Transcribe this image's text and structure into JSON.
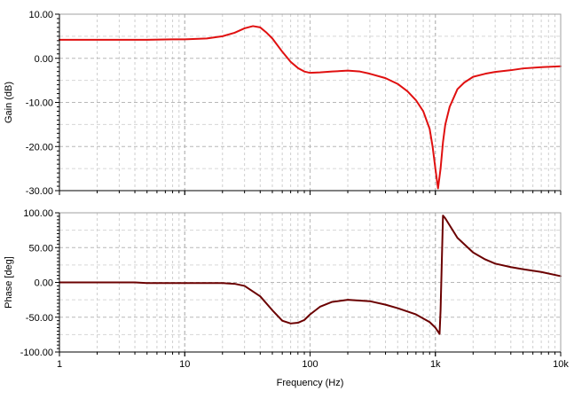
{
  "chart_data": [
    {
      "type": "line",
      "ylabel": "Gain (dB)",
      "xscale": "log",
      "xlim": [
        1,
        10000
      ],
      "ylim": [
        -30,
        10
      ],
      "yticks": [
        10,
        0,
        -10,
        -20,
        -30
      ],
      "ytick_labels": [
        "10.00",
        "0.00",
        "-10.00",
        "-20.00",
        "-30.00"
      ],
      "grid": true,
      "series": [
        {
          "color": "#e01010",
          "x": [
            1,
            2,
            5,
            8,
            10,
            15,
            20,
            25,
            30,
            35,
            40,
            45,
            50,
            60,
            70,
            80,
            90,
            100,
            120,
            150,
            200,
            250,
            300,
            400,
            500,
            600,
            700,
            800,
            900,
            950,
            1000,
            1050,
            1100,
            1150,
            1200,
            1300,
            1500,
            1700,
            2000,
            2500,
            3000,
            4000,
            5000,
            7000,
            10000
          ],
          "y": [
            4.2,
            4.2,
            4.2,
            4.3,
            4.3,
            4.5,
            5.0,
            5.8,
            6.8,
            7.3,
            7.0,
            5.8,
            4.5,
            1.5,
            -0.8,
            -2.2,
            -3.0,
            -3.3,
            -3.2,
            -3.0,
            -2.8,
            -3.0,
            -3.5,
            -4.5,
            -5.8,
            -7.5,
            -9.5,
            -12.0,
            -16.0,
            -20.0,
            -25.0,
            -29.5,
            -25.0,
            -19.0,
            -15.0,
            -11.0,
            -7.0,
            -5.5,
            -4.2,
            -3.5,
            -3.1,
            -2.7,
            -2.3,
            -2.0,
            -1.8
          ]
        }
      ]
    },
    {
      "type": "line",
      "xlabel": "Frequency (Hz)",
      "ylabel": "Phase [deg]",
      "xscale": "log",
      "xlim": [
        1,
        10000
      ],
      "ylim": [
        -100,
        100
      ],
      "yticks": [
        100,
        50,
        0,
        -50,
        -100
      ],
      "ytick_labels": [
        "100.00",
        "50.00",
        "0.00",
        "-50.00",
        "-100.00"
      ],
      "xticks": [
        1,
        10,
        100,
        1000,
        10000
      ],
      "xtick_labels": [
        "1",
        "10",
        "100",
        "1k",
        "10k"
      ],
      "grid": true,
      "series": [
        {
          "color": "#6b0000",
          "x": [
            1,
            2,
            4,
            5,
            8,
            10,
            15,
            20,
            25,
            30,
            40,
            50,
            60,
            70,
            80,
            90,
            100,
            120,
            150,
            200,
            300,
            400,
            500,
            700,
            900,
            1000,
            1080,
            1100,
            1150,
            1200,
            1300,
            1500,
            2000,
            2500,
            3000,
            4000,
            5000,
            7000,
            10000
          ],
          "y": [
            0,
            0,
            0,
            -1,
            -1,
            -1,
            -1,
            -1,
            -2,
            -5,
            -20,
            -40,
            -55,
            -59,
            -58,
            -54,
            -46,
            -35,
            -28,
            -25,
            -27,
            -32,
            -37,
            -46,
            -57,
            -65,
            -74,
            -40,
            96,
            92,
            82,
            64,
            43,
            33,
            27,
            22,
            19,
            15,
            9
          ]
        }
      ]
    }
  ]
}
